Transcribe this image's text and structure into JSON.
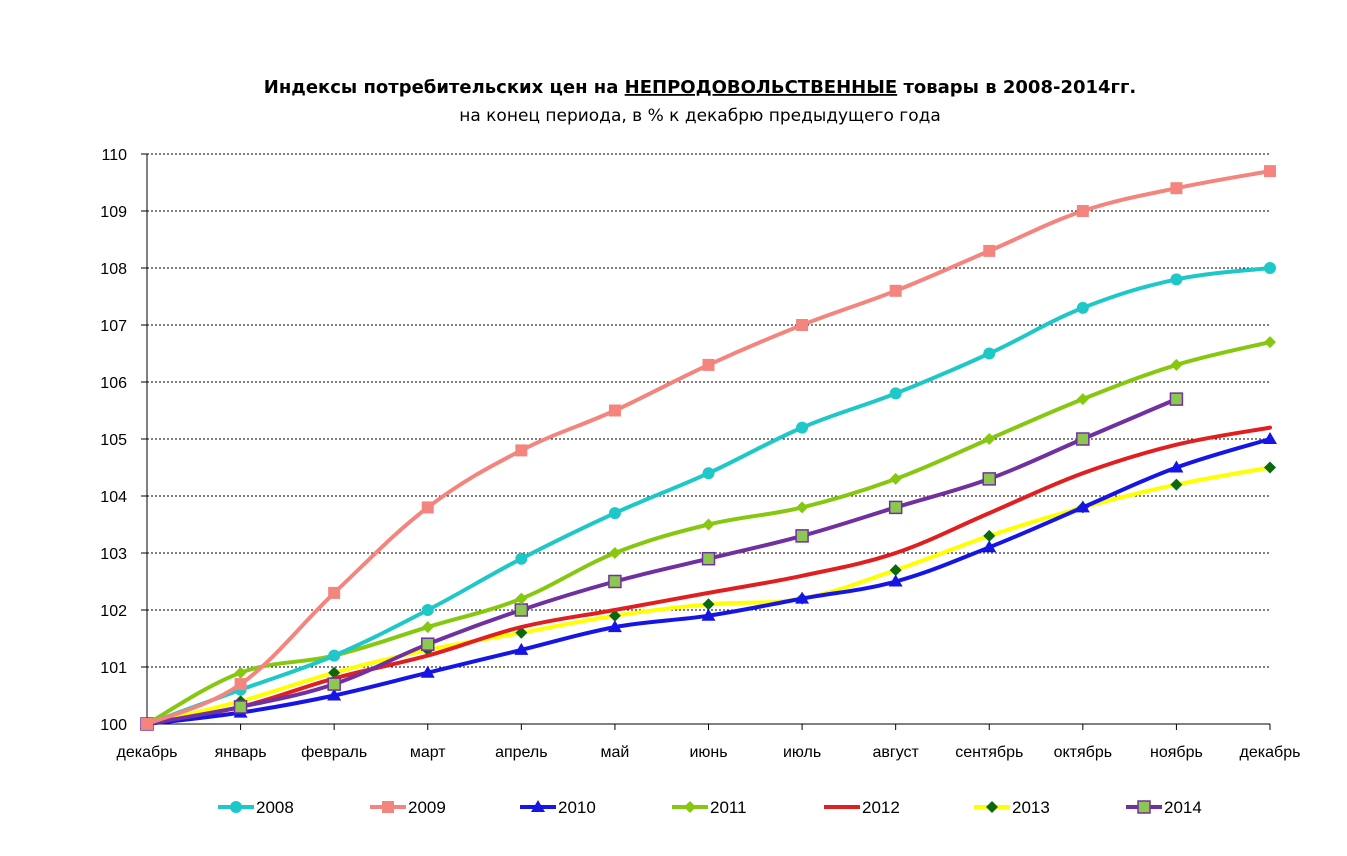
{
  "chart_data": {
    "type": "line",
    "title_prefix": "Индексы потребительских цен на ",
    "title_emph": "НЕПРОДОВОЛЬСТВЕННЫЕ",
    "title_suffix": " товары в 2008-2014гг.",
    "subtitle": "на конец периода, в % к декабрю предыдущего года",
    "categories": [
      "декабрь",
      "январь",
      "февраль",
      "март",
      "апрель",
      "май",
      "июнь",
      "июль",
      "август",
      "сентябрь",
      "октябрь",
      "ноябрь",
      "декабрь"
    ],
    "ylim": [
      100,
      110
    ],
    "yticks": [
      "100",
      "101",
      "102",
      "103",
      "104",
      "105",
      "106",
      "107",
      "108",
      "109",
      "110"
    ],
    "grid": true,
    "legend_position": "bottom",
    "series": [
      {
        "name": "2008",
        "color": "#1ec8c8",
        "marker": "circle",
        "values": [
          100,
          100.6,
          101.2,
          102.0,
          102.9,
          103.7,
          104.4,
          105.2,
          105.8,
          106.5,
          107.3,
          107.8,
          108.0
        ]
      },
      {
        "name": "2009",
        "color": "#f4857e",
        "marker": "square",
        "values": [
          100,
          100.7,
          102.3,
          103.8,
          104.8,
          105.5,
          106.3,
          107.0,
          107.6,
          108.3,
          109.0,
          109.4,
          109.7
        ]
      },
      {
        "name": "2010",
        "color": "#1515e6",
        "marker": "triangle",
        "values": [
          100,
          100.2,
          100.5,
          100.9,
          101.3,
          101.7,
          101.9,
          102.2,
          102.5,
          103.1,
          103.8,
          104.5,
          105.0
        ]
      },
      {
        "name": "2011",
        "color": "#86c810",
        "marker": "diamond",
        "values": [
          100,
          100.9,
          101.2,
          101.7,
          102.2,
          103.0,
          103.5,
          103.8,
          104.3,
          105.0,
          105.7,
          106.3,
          106.7
        ]
      },
      {
        "name": "2012",
        "color": "#e02020",
        "marker": "none",
        "values": [
          100,
          100.3,
          100.8,
          101.2,
          101.7,
          102.0,
          102.3,
          102.6,
          103.0,
          103.7,
          104.4,
          104.9,
          105.2
        ]
      },
      {
        "name": "2013",
        "color": "#ffff00",
        "marker": "diamond-dark",
        "values": [
          100,
          100.4,
          100.9,
          101.3,
          101.6,
          101.9,
          102.1,
          102.2,
          102.7,
          103.3,
          103.8,
          104.2,
          104.5
        ]
      },
      {
        "name": "2014",
        "color": "#7030a0",
        "marker": "square-green",
        "values": [
          100,
          100.3,
          100.7,
          101.4,
          102.0,
          102.5,
          102.9,
          103.3,
          103.8,
          104.3,
          105.0,
          105.7,
          null
        ]
      }
    ]
  }
}
